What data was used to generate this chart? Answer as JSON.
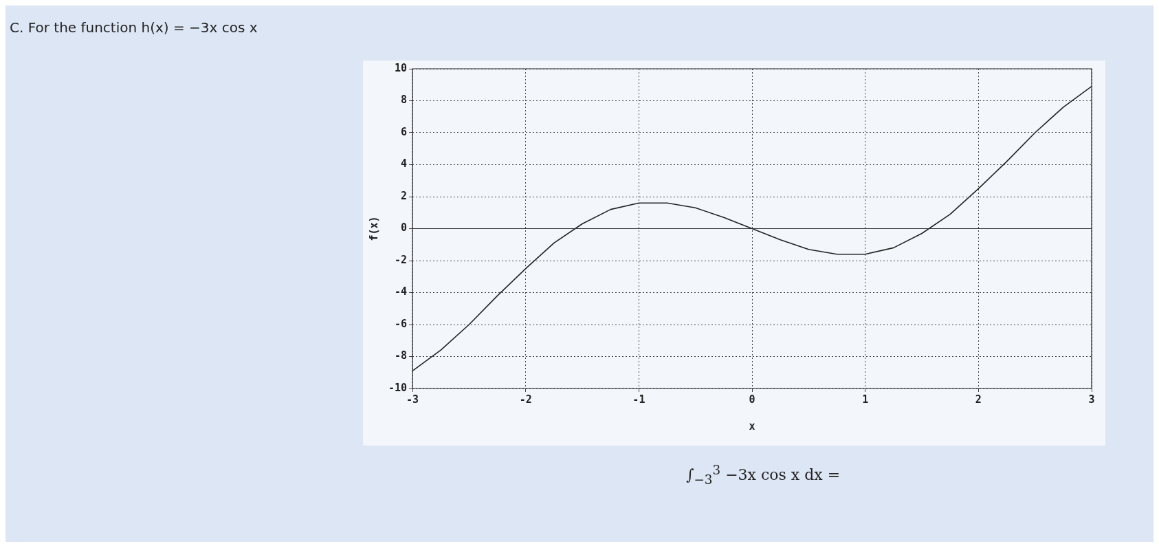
{
  "chart_data": {
    "type": "line",
    "title": "C. For the function h(x) = −3x cos x",
    "xlabel": "x",
    "ylabel": "f(x)",
    "x": [
      -3,
      -2.75,
      -2.5,
      -2.25,
      -2,
      -1.75,
      -1.5,
      -1.25,
      -1,
      -0.75,
      -0.5,
      -0.25,
      0,
      0.25,
      0.5,
      0.75,
      1,
      1.25,
      1.5,
      1.75,
      2,
      2.25,
      2.5,
      2.75,
      3
    ],
    "series": [
      {
        "color": "#222222",
        "values": [
          -8.9,
          -7.6,
          -6.0,
          -4.2,
          -2.5,
          -0.9,
          0.3,
          1.2,
          1.6,
          1.6,
          1.3,
          0.7,
          0,
          -0.7,
          -1.3,
          -1.6,
          -1.6,
          -1.2,
          -0.3,
          0.9,
          2.5,
          4.2,
          6.0,
          7.6,
          8.9
        ]
      }
    ],
    "xlim": [
      -3,
      3
    ],
    "xticks": [
      -3,
      -2,
      -1,
      0,
      1,
      2,
      3
    ],
    "ylim": [
      -10,
      10
    ],
    "yticks": [
      -10,
      -8,
      -6,
      -4,
      -2,
      0,
      2,
      4,
      6,
      8,
      10
    ],
    "grid": true,
    "marker": "none",
    "line_style": "solid",
    "ref_lines": [
      {
        "axis": "y",
        "value": 0,
        "color": "#333333",
        "line_style": "solid"
      }
    ],
    "annotations": [
      "∫$_{−3}$$^{3}$ −3x cos x dx ="
    ]
  }
}
